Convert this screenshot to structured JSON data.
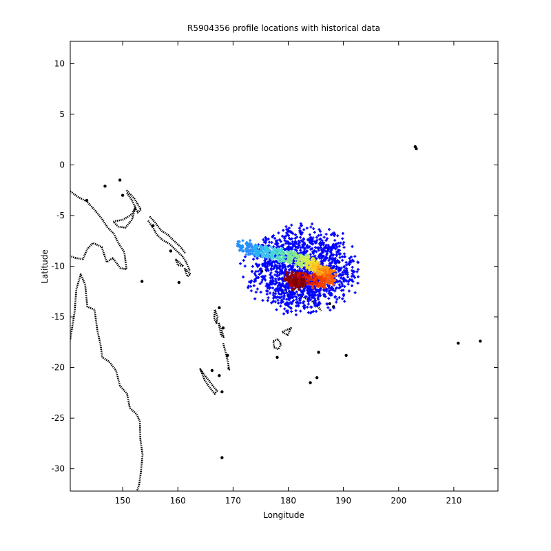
{
  "chart_data": {
    "type": "scatter",
    "title": "R5904356 profile locations with historical data",
    "xlabel": "Longitude",
    "ylabel": "Latitude",
    "xlim": [
      140.5,
      218
    ],
    "ylim": [
      -32.2,
      12.2
    ],
    "xticks": [
      150,
      160,
      170,
      180,
      190,
      200,
      210
    ],
    "yticks": [
      10,
      5,
      0,
      -5,
      -10,
      -15,
      -20,
      -25,
      -30
    ],
    "grid": false,
    "legend": "none",
    "historical": {
      "color": "#0000ff",
      "center": [
        182.5,
        -10.3
      ],
      "spread_lon": 11.5,
      "spread_lat": 4.8
    },
    "profile_track": [
      {
        "lon": 172.0,
        "lat": -8.0,
        "color": "#1e90ff"
      },
      {
        "lon": 173.5,
        "lat": -8.3,
        "color": "#2f8fff"
      },
      {
        "lon": 175.0,
        "lat": -8.5,
        "color": "#28b4f0"
      },
      {
        "lon": 176.5,
        "lat": -8.6,
        "color": "#3fc8e8"
      },
      {
        "lon": 178.0,
        "lat": -8.8,
        "color": "#4ad6d6"
      },
      {
        "lon": 179.5,
        "lat": -9.0,
        "color": "#60e0b4"
      },
      {
        "lon": 181.0,
        "lat": -9.2,
        "color": "#80e890"
      },
      {
        "lon": 182.5,
        "lat": -9.4,
        "color": "#a8f070"
      },
      {
        "lon": 183.5,
        "lat": -9.6,
        "color": "#d0f050"
      },
      {
        "lon": 184.5,
        "lat": -9.9,
        "color": "#f0e030"
      },
      {
        "lon": 185.5,
        "lat": -10.3,
        "color": "#ffc020"
      },
      {
        "lon": 186.5,
        "lat": -10.6,
        "color": "#ff9a10"
      },
      {
        "lon": 187.5,
        "lat": -10.9,
        "color": "#ff7a00"
      },
      {
        "lon": 187.0,
        "lat": -11.4,
        "color": "#ff5a00"
      },
      {
        "lon": 185.5,
        "lat": -11.6,
        "color": "#f04000"
      },
      {
        "lon": 184.0,
        "lat": -11.3,
        "color": "#e02000"
      },
      {
        "lon": 182.5,
        "lat": -11.2,
        "color": "#c81000"
      },
      {
        "lon": 181.5,
        "lat": -11.5,
        "color": "#b00000"
      },
      {
        "lon": 180.5,
        "lat": -11.1,
        "color": "#900000"
      },
      {
        "lon": 181.8,
        "lat": -11.8,
        "color": "#800000"
      }
    ],
    "coastlines": [
      {
        "name": "new-guinea-coast",
        "points": [
          [
            140.5,
            -2.6
          ],
          [
            142,
            -3.2
          ],
          [
            143.5,
            -3.6
          ],
          [
            145,
            -4.5
          ],
          [
            146.2,
            -5.3
          ],
          [
            147.3,
            -6.2
          ],
          [
            148.4,
            -6.8
          ],
          [
            149.3,
            -7.8
          ],
          [
            150.3,
            -8.6
          ],
          [
            150.7,
            -10.3
          ],
          [
            149.6,
            -10.2
          ],
          [
            148.2,
            -9.2
          ],
          [
            147.1,
            -9.6
          ],
          [
            146.2,
            -8.1
          ],
          [
            144.6,
            -7.7
          ],
          [
            143.6,
            -8.3
          ],
          [
            142.8,
            -9.3
          ],
          [
            141.5,
            -9.2
          ],
          [
            140.5,
            -9.0
          ]
        ]
      },
      {
        "name": "new-britain-coast",
        "points": [
          [
            148.3,
            -5.6
          ],
          [
            150.1,
            -5.4
          ],
          [
            151.6,
            -4.9
          ],
          [
            152.3,
            -4.2
          ],
          [
            151.7,
            -5.4
          ],
          [
            150.5,
            -6.2
          ],
          [
            149.2,
            -6.1
          ],
          [
            148.3,
            -5.6
          ]
        ]
      },
      {
        "name": "new-ireland-coast",
        "points": [
          [
            150.7,
            -2.5
          ],
          [
            152.1,
            -3.3
          ],
          [
            153.3,
            -4.4
          ],
          [
            152.7,
            -4.7
          ],
          [
            151.7,
            -3.5
          ],
          [
            150.7,
            -2.7
          ]
        ]
      },
      {
        "name": "australia-coast",
        "points": [
          [
            140.5,
            -17.2
          ],
          [
            141.3,
            -14.5
          ],
          [
            141.6,
            -12.3
          ],
          [
            142.4,
            -10.8
          ],
          [
            143.2,
            -11.8
          ],
          [
            143.6,
            -14.0
          ],
          [
            144.9,
            -14.3
          ],
          [
            145.4,
            -16.3
          ],
          [
            146.0,
            -17.8
          ],
          [
            146.3,
            -19.0
          ],
          [
            147.5,
            -19.4
          ],
          [
            148.8,
            -20.3
          ],
          [
            149.5,
            -21.8
          ],
          [
            150.8,
            -22.6
          ],
          [
            151.3,
            -24.0
          ],
          [
            152.5,
            -24.6
          ],
          [
            153.1,
            -25.3
          ],
          [
            153.2,
            -27.1
          ],
          [
            153.6,
            -28.6
          ],
          [
            153.3,
            -30.3
          ],
          [
            153.0,
            -31.5
          ],
          [
            152.6,
            -32.2
          ]
        ]
      },
      {
        "name": "solomon-islands-coast",
        "points": [
          [
            154.6,
            -5.5
          ],
          [
            155.6,
            -6.3
          ],
          [
            156.2,
            -6.9
          ],
          [
            157.2,
            -7.4
          ],
          [
            158.5,
            -7.8
          ],
          [
            159.8,
            -8.5
          ],
          [
            160.8,
            -9.0
          ],
          [
            161.5,
            -9.6
          ],
          [
            162.2,
            -10.5
          ]
        ]
      },
      {
        "name": "solomon-outer-coast",
        "points": [
          [
            154.9,
            -5.1
          ],
          [
            155.9,
            -5.7
          ],
          [
            157.0,
            -6.5
          ],
          [
            158.2,
            -6.9
          ],
          [
            159.3,
            -7.5
          ],
          [
            160.5,
            -8.1
          ],
          [
            161.3,
            -8.7
          ]
        ]
      },
      {
        "name": "guadalcanal-coast",
        "points": [
          [
            159.6,
            -9.3
          ],
          [
            160.6,
            -9.8
          ],
          [
            161.0,
            -10.0
          ],
          [
            160.0,
            -9.9
          ],
          [
            159.6,
            -9.3
          ]
        ]
      },
      {
        "name": "makira-coast",
        "points": [
          [
            161.2,
            -10.2
          ],
          [
            162.3,
            -10.8
          ],
          [
            161.7,
            -11.0
          ],
          [
            161.2,
            -10.2
          ]
        ]
      },
      {
        "name": "vanuatu-north-coast",
        "points": [
          [
            166.7,
            -14.3
          ],
          [
            167.2,
            -15.0
          ],
          [
            167.0,
            -15.6
          ],
          [
            166.6,
            -15.2
          ],
          [
            166.7,
            -14.3
          ]
        ]
      },
      {
        "name": "vanuatu-central-coast",
        "points": [
          [
            167.4,
            -15.6
          ],
          [
            167.9,
            -16.3
          ],
          [
            168.3,
            -17.0
          ],
          [
            167.8,
            -16.8
          ],
          [
            167.4,
            -15.6
          ]
        ]
      },
      {
        "name": "vanuatu-south-coast",
        "points": [
          [
            168.2,
            -17.6
          ],
          [
            168.6,
            -18.4
          ],
          [
            169.0,
            -19.3
          ],
          [
            169.3,
            -20.2
          ],
          [
            168.9,
            -20.0
          ]
        ]
      },
      {
        "name": "new-caledonia-coast",
        "points": [
          [
            164.0,
            -20.1
          ],
          [
            164.9,
            -20.8
          ],
          [
            165.8,
            -21.4
          ],
          [
            166.6,
            -22.0
          ],
          [
            167.1,
            -22.3
          ],
          [
            166.7,
            -22.6
          ],
          [
            165.8,
            -22.0
          ],
          [
            164.9,
            -21.3
          ],
          [
            164.0,
            -20.1
          ]
        ]
      },
      {
        "name": "fiji-viti-levu-coast",
        "points": [
          [
            177.3,
            -17.4
          ],
          [
            178.1,
            -17.2
          ],
          [
            178.7,
            -17.7
          ],
          [
            178.2,
            -18.2
          ],
          [
            177.4,
            -18.0
          ],
          [
            177.3,
            -17.4
          ]
        ]
      },
      {
        "name": "fiji-vanua-levu-coast",
        "points": [
          [
            178.9,
            -16.5
          ],
          [
            179.7,
            -16.3
          ],
          [
            180.5,
            -16.1
          ],
          [
            179.9,
            -16.8
          ],
          [
            178.9,
            -16.5
          ]
        ]
      },
      {
        "name": "wallis-futuna-coast",
        "points": [
          [
            183.5,
            -13.1
          ],
          [
            184.2,
            -13.4
          ],
          [
            185.5,
            -14.1
          ],
          [
            186.0,
            -14.4
          ]
        ]
      },
      {
        "name": "island-chain-east",
        "points": [
          [
            178.3,
            -12.3
          ],
          [
            181.0,
            -12.6
          ],
          [
            183.6,
            -13.3
          ]
        ]
      }
    ],
    "islands": [
      {
        "lon": 146.8,
        "lat": -2.1
      },
      {
        "lon": 149.5,
        "lat": -1.5
      },
      {
        "lon": 150.0,
        "lat": -3.0
      },
      {
        "lon": 143.5,
        "lat": -3.5
      },
      {
        "lon": 153.5,
        "lat": -11.5
      },
      {
        "lon": 155.5,
        "lat": -6.0
      },
      {
        "lon": 158.7,
        "lat": -8.5
      },
      {
        "lon": 160.2,
        "lat": -11.6
      },
      {
        "lon": 168.2,
        "lat": -16.1
      },
      {
        "lon": 169.0,
        "lat": -18.8
      },
      {
        "lon": 167.5,
        "lat": -20.8
      },
      {
        "lon": 168.0,
        "lat": -22.4
      },
      {
        "lon": 168.0,
        "lat": -28.9
      },
      {
        "lon": 175.2,
        "lat": -10.5
      },
      {
        "lon": 178.0,
        "lat": -19.0
      },
      {
        "lon": 184.0,
        "lat": -21.5
      },
      {
        "lon": 185.2,
        "lat": -21.0
      },
      {
        "lon": 185.5,
        "lat": -18.5
      },
      {
        "lon": 187.5,
        "lat": -13.7
      },
      {
        "lon": 188.2,
        "lat": -14.0
      },
      {
        "lon": 190.5,
        "lat": -18.8
      },
      {
        "lon": 203.0,
        "lat": 1.8
      },
      {
        "lon": 203.2,
        "lat": 1.6
      },
      {
        "lon": 210.8,
        "lat": -17.6
      },
      {
        "lon": 214.8,
        "lat": -17.4
      },
      {
        "lon": 167.5,
        "lat": -14.1
      },
      {
        "lon": 166.2,
        "lat": -20.3
      },
      {
        "lon": 188.0,
        "lat": -11.4
      },
      {
        "lon": 189.2,
        "lat": -9.6
      }
    ]
  }
}
